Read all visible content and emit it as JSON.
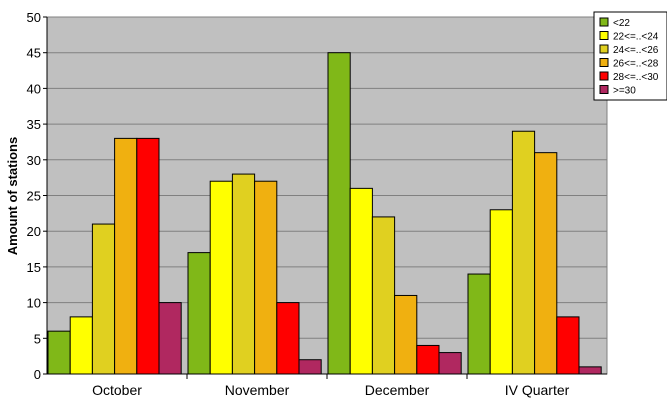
{
  "chart_data": {
    "type": "bar",
    "title": "",
    "xlabel": "",
    "ylabel": "Amount of stations",
    "ylim": [
      0,
      50
    ],
    "ytick_step": 5,
    "grid": true,
    "legend_position": "top-right",
    "plot_background": "#c0c0c0",
    "categories": [
      "October",
      "November",
      "December",
      "IV Quarter"
    ],
    "series": [
      {
        "name": "<22",
        "color": "#80b818",
        "values": [
          6,
          17,
          45,
          14
        ]
      },
      {
        "name": "22<=..<24",
        "color": "#ffff00",
        "values": [
          8,
          27,
          26,
          23
        ]
      },
      {
        "name": "24<=..<26",
        "color": "#e0d020",
        "values": [
          21,
          28,
          22,
          34
        ]
      },
      {
        "name": "26<=..<28",
        "color": "#f0b010",
        "values": [
          33,
          27,
          11,
          31
        ]
      },
      {
        "name": "28<=..<30",
        "color": "#ff0000",
        "values": [
          33,
          10,
          4,
          8
        ]
      },
      {
        "name": ">=30",
        "color": "#b02860",
        "values": [
          10,
          2,
          3,
          1
        ]
      }
    ]
  }
}
